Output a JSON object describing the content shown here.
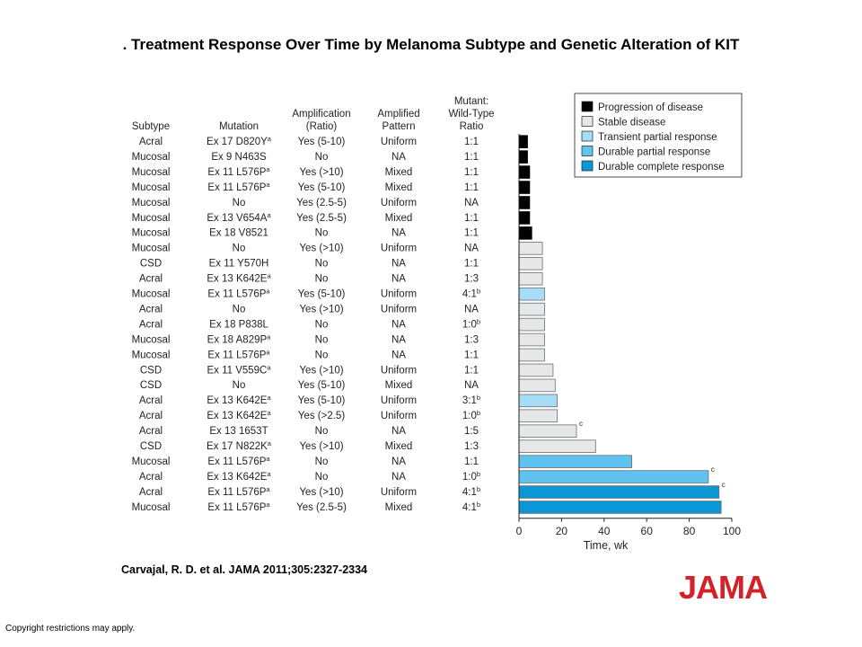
{
  "title": ". Treatment Response Over Time by Melanoma Subtype and Genetic Alteration of KIT",
  "citation": "Carvajal, R. D. et al. JAMA 2011;305:2327-2334",
  "copyright": "Copyright restrictions may apply.",
  "logo_text": "JAMA",
  "colors": {
    "logo": "#d2232a",
    "Progression of disease": "#000000",
    "Stable disease": "#e6e7e8",
    "Transient partial response": "#a6dcf6",
    "Durable partial response": "#5fc3ef",
    "Durable complete response": "#0b97d6"
  },
  "table": {
    "headers": [
      "Subtype",
      "Mutation",
      "Amplification (Ratio)",
      "Amplified Pattern",
      "Mutant: Wild-Type Ratio"
    ],
    "rows": [
      {
        "subtype": "Acral",
        "mutation": "Ex 17 D820Y",
        "mut_sup": "a",
        "amp": "Yes (5-10)",
        "pattern": "Uniform",
        "ratio": "1:1",
        "ratio_sup": ""
      },
      {
        "subtype": "Mucosal",
        "mutation": "Ex 9 N463S",
        "mut_sup": "",
        "amp": "No",
        "pattern": "NA",
        "ratio": "1:1",
        "ratio_sup": ""
      },
      {
        "subtype": "Mucosal",
        "mutation": "Ex 11 L576P",
        "mut_sup": "a",
        "amp": "Yes (>10)",
        "pattern": "Mixed",
        "ratio": "1:1",
        "ratio_sup": ""
      },
      {
        "subtype": "Mucosal",
        "mutation": "Ex 11 L576P",
        "mut_sup": "a",
        "amp": "Yes (5-10)",
        "pattern": "Mixed",
        "ratio": "1:1",
        "ratio_sup": ""
      },
      {
        "subtype": "Mucosal",
        "mutation": "No",
        "mut_sup": "",
        "amp": "Yes (2.5-5)",
        "pattern": "Uniform",
        "ratio": "NA",
        "ratio_sup": ""
      },
      {
        "subtype": "Mucosal",
        "mutation": "Ex 13 V654A",
        "mut_sup": "a",
        "amp": "Yes (2.5-5)",
        "pattern": "Mixed",
        "ratio": "1:1",
        "ratio_sup": ""
      },
      {
        "subtype": "Mucosal",
        "mutation": "Ex 18 V8521",
        "mut_sup": "",
        "amp": "No",
        "pattern": "NA",
        "ratio": "1:1",
        "ratio_sup": ""
      },
      {
        "subtype": "Mucosal",
        "mutation": "No",
        "mut_sup": "",
        "amp": "Yes (>10)",
        "pattern": "Uniform",
        "ratio": "NA",
        "ratio_sup": ""
      },
      {
        "subtype": "CSD",
        "mutation": "Ex 11 Y570H",
        "mut_sup": "",
        "amp": "No",
        "pattern": "NA",
        "ratio": "1:1",
        "ratio_sup": ""
      },
      {
        "subtype": "Acral",
        "mutation": "Ex 13 K642E",
        "mut_sup": "a",
        "amp": "No",
        "pattern": "NA",
        "ratio": "1:3",
        "ratio_sup": ""
      },
      {
        "subtype": "Mucosal",
        "mutation": "Ex 11 L576P",
        "mut_sup": "a",
        "amp": "Yes (5-10)",
        "pattern": "Uniform",
        "ratio": "4:1",
        "ratio_sup": "b"
      },
      {
        "subtype": "Acral",
        "mutation": "No",
        "mut_sup": "",
        "amp": "Yes (>10)",
        "pattern": "Uniform",
        "ratio": "NA",
        "ratio_sup": ""
      },
      {
        "subtype": "Acral",
        "mutation": "Ex 18 P838L",
        "mut_sup": "",
        "amp": "No",
        "pattern": "NA",
        "ratio": "1:0",
        "ratio_sup": "b"
      },
      {
        "subtype": "Mucosal",
        "mutation": "Ex 18 A829P",
        "mut_sup": "a",
        "amp": "No",
        "pattern": "NA",
        "ratio": "1:3",
        "ratio_sup": ""
      },
      {
        "subtype": "Mucosal",
        "mutation": "Ex 11 L576P",
        "mut_sup": "a",
        "amp": "No",
        "pattern": "NA",
        "ratio": "1:1",
        "ratio_sup": ""
      },
      {
        "subtype": "CSD",
        "mutation": "Ex 11 V559C",
        "mut_sup": "a",
        "amp": "Yes (>10)",
        "pattern": "Uniform",
        "ratio": "1:1",
        "ratio_sup": ""
      },
      {
        "subtype": "CSD",
        "mutation": "No",
        "mut_sup": "",
        "amp": "Yes (5-10)",
        "pattern": "Mixed",
        "ratio": "NA",
        "ratio_sup": ""
      },
      {
        "subtype": "Acral",
        "mutation": "Ex 13 K642E",
        "mut_sup": "a",
        "amp": "Yes (5-10)",
        "pattern": "Uniform",
        "ratio": "3:1",
        "ratio_sup": "b"
      },
      {
        "subtype": "Acral",
        "mutation": "Ex 13 K642E",
        "mut_sup": "a",
        "amp": "Yes (>2.5)",
        "pattern": "Uniform",
        "ratio": "1:0",
        "ratio_sup": "b"
      },
      {
        "subtype": "Acral",
        "mutation": "Ex 13 1653T",
        "mut_sup": "",
        "amp": "No",
        "pattern": "NA",
        "ratio": "1:5",
        "ratio_sup": ""
      },
      {
        "subtype": "CSD",
        "mutation": "Ex 17 N822K",
        "mut_sup": "a",
        "amp": "Yes (>10)",
        "pattern": "Mixed",
        "ratio": "1:3",
        "ratio_sup": ""
      },
      {
        "subtype": "Mucosal",
        "mutation": "Ex 11 L576P",
        "mut_sup": "a",
        "amp": "No",
        "pattern": "NA",
        "ratio": "1:1",
        "ratio_sup": ""
      },
      {
        "subtype": "Acral",
        "mutation": "Ex 13 K642E",
        "mut_sup": "a",
        "amp": "No",
        "pattern": "NA",
        "ratio": "1:0",
        "ratio_sup": "b"
      },
      {
        "subtype": "Acral",
        "mutation": "Ex 11 L576P",
        "mut_sup": "a",
        "amp": "Yes (>10)",
        "pattern": "Uniform",
        "ratio": "4:1",
        "ratio_sup": "b"
      },
      {
        "subtype": "Mucosal",
        "mutation": "Ex 11 L576P",
        "mut_sup": "a",
        "amp": "Yes (2.5-5)",
        "pattern": "Mixed",
        "ratio": "4:1",
        "ratio_sup": "b"
      }
    ]
  },
  "chart_data": {
    "type": "bar",
    "orientation": "horizontal",
    "title": "",
    "xlabel": "Time, wk",
    "ylabel": "",
    "xlim": [
      0,
      100
    ],
    "xticks": [
      0,
      20,
      40,
      60,
      80,
      100
    ],
    "grid": false,
    "legend_position": "top-right",
    "legend": [
      "Progression of disease",
      "Stable disease",
      "Transient partial response",
      "Durable partial response",
      "Durable complete response"
    ],
    "values": [
      4,
      4,
      5,
      5,
      5,
      5,
      6,
      11,
      11,
      11,
      12,
      12,
      12,
      12,
      12,
      16,
      17,
      18,
      18,
      27,
      36,
      53,
      89,
      94,
      95
    ],
    "responses": [
      "Progression of disease",
      "Progression of disease",
      "Progression of disease",
      "Progression of disease",
      "Progression of disease",
      "Progression of disease",
      "Progression of disease",
      "Stable disease",
      "Stable disease",
      "Stable disease",
      "Transient partial response",
      "Stable disease",
      "Stable disease",
      "Stable disease",
      "Stable disease",
      "Stable disease",
      "Stable disease",
      "Transient partial response",
      "Stable disease",
      "Stable disease",
      "Stable disease",
      "Durable partial response",
      "Durable partial response",
      "Durable complete response",
      "Durable complete response"
    ],
    "annotations": [
      {
        "row": 19,
        "text": "c"
      },
      {
        "row": 22,
        "text": "c"
      },
      {
        "row": 23,
        "text": "c"
      }
    ]
  }
}
